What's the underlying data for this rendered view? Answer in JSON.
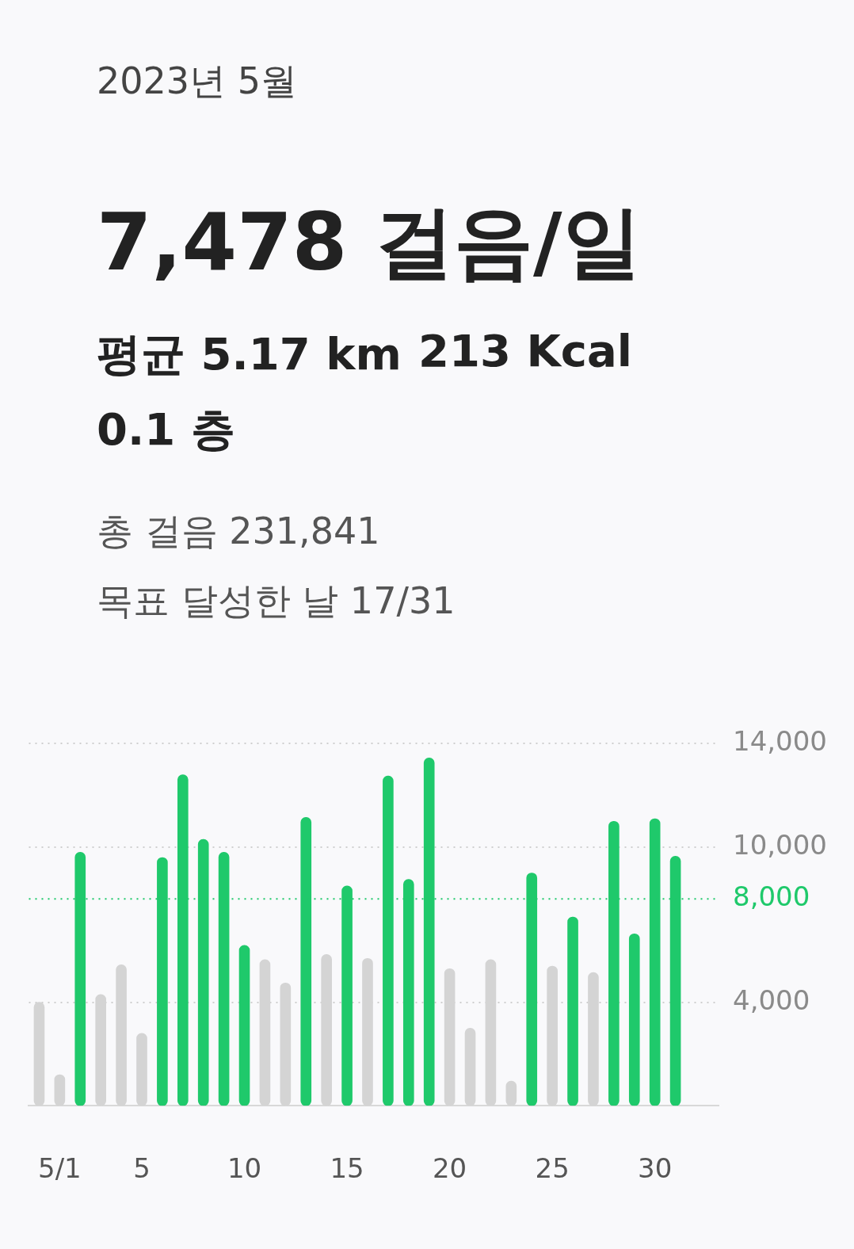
{
  "chart_data": {
    "type": "bar",
    "title": "2023년 5월",
    "annotations": [
      "7,478 걸음/일",
      "평균 5.17 km",
      "213 Kcal",
      "0.1 층",
      "총 걸음 231,841",
      "목표 달성한 날 17/31"
    ],
    "categories": [
      null,
      "5/1",
      null,
      null,
      null,
      "5",
      null,
      null,
      null,
      null,
      "10",
      null,
      null,
      null,
      null,
      "15",
      null,
      null,
      null,
      null,
      "20",
      null,
      null,
      null,
      null,
      "25",
      null,
      null,
      null,
      null,
      "30",
      null
    ],
    "values": [
      4000,
      1200,
      9800,
      4300,
      5450,
      2800,
      9600,
      12800,
      10300,
      9800,
      6200,
      5650,
      4750,
      11150,
      5850,
      8500,
      5700,
      12750,
      8750,
      13450,
      5300,
      3000,
      5650,
      950,
      9000,
      5400,
      7300,
      5150,
      11000,
      6650,
      11100,
      9650
    ],
    "colors": [
      "#d4d4d4",
      "#d4d4d4",
      "#1fc96b",
      "#d4d4d4",
      "#d4d4d4",
      "#d4d4d4",
      "#1fc96b",
      "#1fc96b",
      "#1fc96b",
      "#1fc96b",
      "#1fc96b",
      "#d4d4d4",
      "#d4d4d4",
      "#1fc96b",
      "#d4d4d4",
      "#1fc96b",
      "#d4d4d4",
      "#1fc96b",
      "#1fc96b",
      "#1fc96b",
      "#d4d4d4",
      "#d4d4d4",
      "#d4d4d4",
      "#d4d4d4",
      "#1fc96b",
      "#d4d4d4",
      "#1fc96b",
      "#d4d4d4",
      "#1fc96b",
      "#1fc96b",
      "#1fc96b",
      "#1fc96b"
    ],
    "ylim": [
      0,
      14000
    ],
    "yticks": [
      {
        "value": 4000,
        "label": "4,000"
      },
      {
        "value": 10000,
        "label": "10,000"
      },
      {
        "value": 14000,
        "label": "14,000"
      }
    ],
    "grid": "y",
    "legend": false,
    "ref_lines": [
      {
        "axis": "y",
        "value": 8000,
        "label": "8,000",
        "color": "#1fc96b",
        "line_style": "dotted"
      }
    ]
  }
}
